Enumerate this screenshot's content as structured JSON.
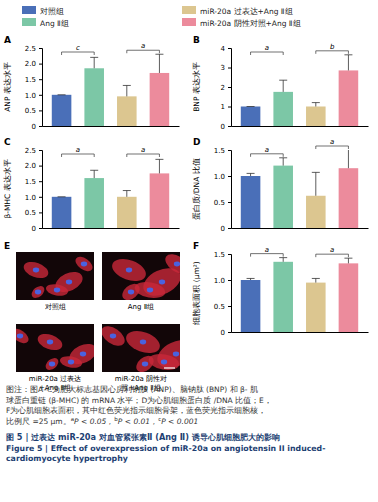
{
  "legend": {
    "entries": [
      {
        "name": "对照组",
        "color": "#4a6fb8"
      },
      {
        "name": "Ang Ⅱ组",
        "color": "#7cc7a6"
      },
      {
        "name": "miR-20a 过表达+Ang Ⅱ组",
        "color": "#dcc690"
      },
      {
        "name": "miR-20a 阴性对照+Ang Ⅱ组",
        "color": "#ec8b9c"
      }
    ]
  },
  "chart_data": [
    {
      "type": "bar",
      "title": "A",
      "y_label": "ANP 表达水平",
      "categories": [
        null,
        null,
        null,
        null
      ],
      "values": [
        1.0,
        1.85,
        0.95,
        1.7
      ],
      "errors": [
        0.0,
        0.35,
        0.35,
        0.6
      ],
      "colors": [
        "#4a6fb8",
        "#7cc7a6",
        "#dcc690",
        "#ec8b9c"
      ],
      "ylim": [
        0,
        2.5
      ],
      "yticks": [
        0,
        0.5,
        {
          "value": 1,
          "label": "1.0"
        },
        1.5,
        {
          "value": 2,
          "label": "2.0"
        },
        2.5
      ],
      "significance": [
        {
          "groups": [
            0,
            1
          ],
          "label": "c"
        },
        {
          "groups": [
            2,
            3
          ],
          "label": "a"
        }
      ]
    },
    {
      "type": "bar",
      "title": "B",
      "y_label": "BNP 表达水平",
      "categories": [
        null,
        null,
        null,
        null
      ],
      "values": [
        1.0,
        1.75,
        1.0,
        2.85
      ],
      "errors": [
        0.0,
        0.6,
        0.2,
        0.8
      ],
      "colors": [
        "#4a6fb8",
        "#7cc7a6",
        "#dcc690",
        "#ec8b9c"
      ],
      "ylim": [
        0,
        4
      ],
      "yticks": [
        0,
        1,
        2,
        3,
        4
      ],
      "significance": [
        {
          "groups": [
            0,
            1
          ],
          "label": "a"
        },
        {
          "groups": [
            2,
            3
          ],
          "label": "b"
        }
      ]
    },
    {
      "type": "bar",
      "title": "C",
      "y_label": "β-MHC 表达水平",
      "categories": [
        null,
        null,
        null,
        null
      ],
      "values": [
        1.0,
        1.6,
        1.0,
        1.75
      ],
      "errors": [
        0.0,
        0.25,
        0.2,
        0.45
      ],
      "colors": [
        "#4a6fb8",
        "#7cc7a6",
        "#dcc690",
        "#ec8b9c"
      ],
      "ylim": [
        0,
        2.5
      ],
      "yticks": [
        0,
        0.5,
        {
          "value": 1,
          "label": "1.0"
        },
        1.5,
        {
          "value": 2,
          "label": "2.0"
        },
        2.5
      ],
      "significance": [
        {
          "groups": [
            0,
            1
          ],
          "label": "a"
        },
        {
          "groups": [
            2,
            3
          ],
          "label": "a"
        }
      ]
    },
    {
      "type": "bar",
      "title": "D",
      "y_label": "蛋白质/DNA 比值",
      "categories": [
        null,
        null,
        null,
        null
      ],
      "values": [
        1.0,
        1.2,
        0.62,
        1.15
      ],
      "errors": [
        0.05,
        0.15,
        0.45,
        0.4
      ],
      "colors": [
        "#4a6fb8",
        "#7cc7a6",
        "#dcc690",
        "#ec8b9c"
      ],
      "ylim": [
        0,
        1.5
      ],
      "yticks": [
        0,
        0.5,
        {
          "value": 1,
          "label": "1.0"
        },
        1.5
      ],
      "significance": [
        {
          "groups": [
            0,
            1
          ],
          "label": "a"
        },
        {
          "groups": [
            2,
            3
          ],
          "label": "a"
        }
      ]
    },
    {
      "type": "bar",
      "title": "F",
      "y_label": "细胞表面积 (μm²)",
      "categories": [
        null,
        null,
        null,
        null
      ],
      "values": [
        1.0,
        1.35,
        0.95,
        1.32
      ],
      "errors": [
        0.03,
        0.08,
        0.08,
        0.1
      ],
      "colors": [
        "#4a6fb8",
        "#7cc7a6",
        "#dcc690",
        "#ec8b9c"
      ],
      "ylim": [
        0,
        1.5
      ],
      "yticks": [
        0,
        0.5,
        {
          "value": 1,
          "label": "1.0"
        },
        1.5
      ],
      "significance": [
        {
          "groups": [
            0,
            1
          ],
          "label": "a"
        },
        {
          "groups": [
            2,
            3
          ],
          "label": "a"
        }
      ]
    }
  ],
  "image_panel": {
    "title": "E",
    "images": [
      {
        "label": [
          "对照组"
        ]
      },
      {
        "label": [
          "Ang Ⅱ组"
        ]
      },
      {
        "label": [
          "miR-20a 过表达",
          "+Ang Ⅱ组"
        ]
      },
      {
        "label": [
          "miR-20a 阴性对",
          "照+Ang Ⅱ组"
        ]
      }
    ]
  },
  "caption": {
    "lines": [
      "图注：图A–C为肥大标志基因心房利钠肽 (ANP)、脑钠肽 (BNP) 和 β- 肌",
      "球蛋白重链 (β-MHC) 的 mRNA 水平；D为心肌细胞蛋白质 /DNA 比值；E，",
      "F为心肌细胞表面积，其中红色荧光指示细胞骨架，蓝色荧光指示细胞核，",
      "比例尺 =25 μm。"
    ],
    "footnotes": [
      {
        "mark": "a",
        "text": "P < 0.05，"
      },
      {
        "mark": "b",
        "text": "P < 0.01，"
      },
      {
        "mark": "c",
        "text": "P < 0.001"
      }
    ]
  },
  "figure_title": {
    "zh": "图 5 | 过表达 miR-20a 对血管紧张素Ⅱ (Ang Ⅱ) 诱导心肌细胞肥大的影响",
    "en": [
      "Figure 5 | Effect of overexpression of miR-20a on angiotensin II induced-",
      "cardiomyocyte hypertrophy"
    ]
  }
}
